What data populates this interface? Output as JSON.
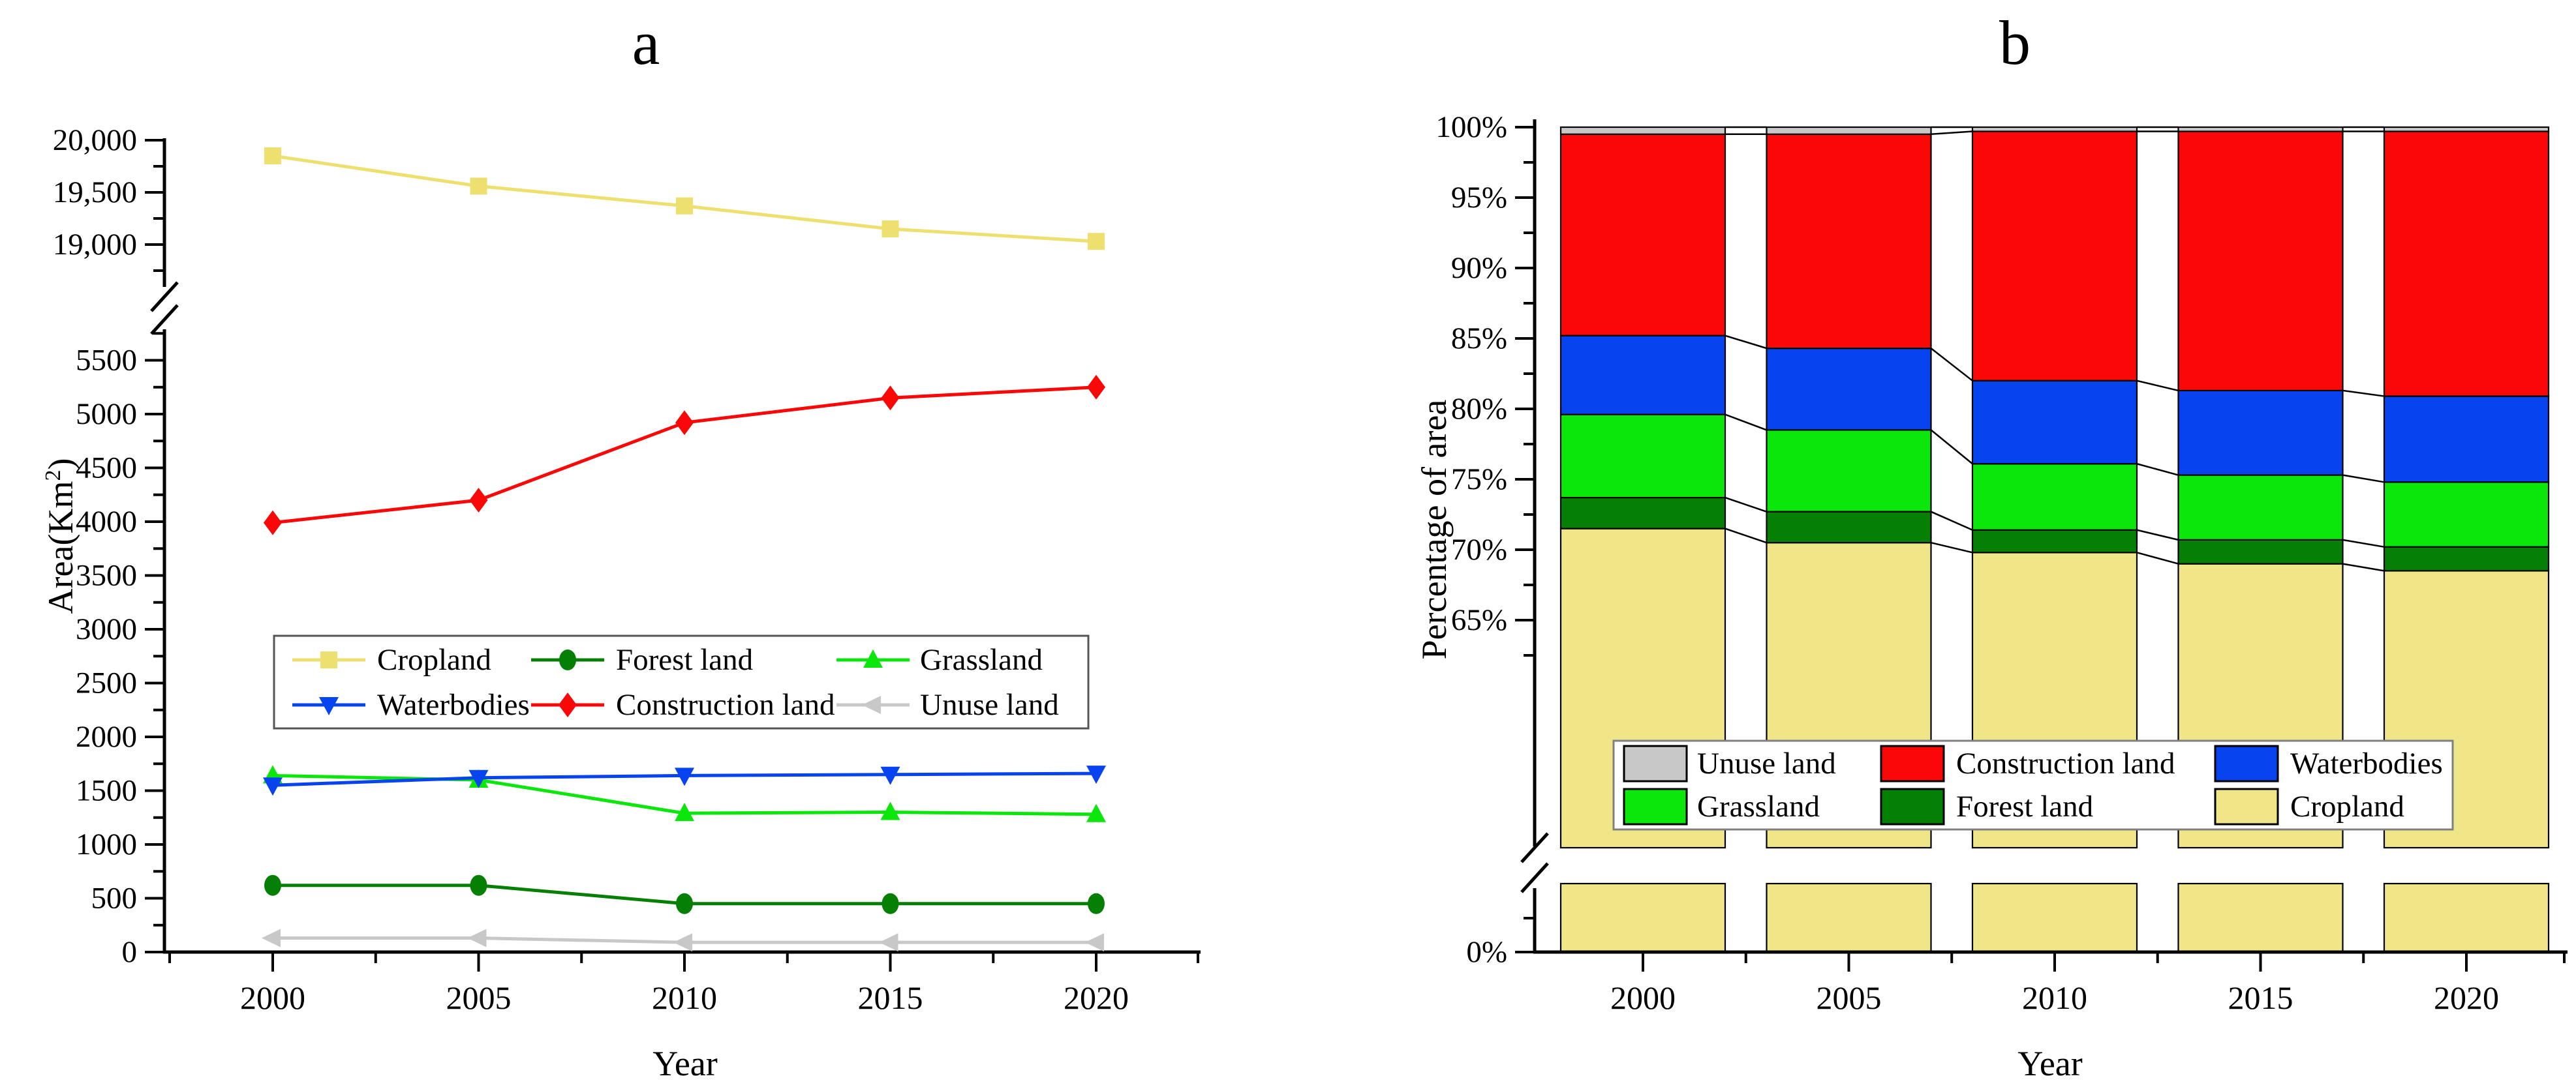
{
  "figure": {
    "background": "#ffffff",
    "panel_a": {
      "title": "a",
      "xlabel": "Year",
      "ylabel_prefix": "Area(Km",
      "ylabel_sup": "2",
      "ylabel_suffix": ")"
    },
    "panel_b": {
      "title": "b",
      "xlabel": "Year",
      "ylabel": "Percentage of area"
    }
  },
  "chart_data": [
    {
      "panel": "a",
      "type": "line",
      "title": "a",
      "xlabel": "Year",
      "ylabel": "Area(Km2)",
      "x": [
        2000,
        2005,
        2010,
        2015,
        2020
      ],
      "xtick_labels": [
        "2000",
        "2005",
        "2010",
        "2015",
        "2020"
      ],
      "axis_break": {
        "lower_range": [
          0,
          5750
        ],
        "upper_range": [
          18500,
          20100
        ]
      },
      "grid": false,
      "legend_position": "center-left-inside",
      "yticks_upper": {
        "values": [
          20000,
          19500,
          19000
        ],
        "labels": [
          "20,000",
          "19,500",
          "19,000"
        ]
      },
      "yticks_upper_minor": [
        19750,
        19250,
        18750
      ],
      "yticks_lower": {
        "values": [
          5500,
          5000,
          4500,
          4000,
          3500,
          3000,
          2500,
          2000,
          1500,
          1000,
          500,
          0
        ],
        "labels": [
          "5500",
          "5000",
          "4500",
          "4000",
          "3500",
          "3000",
          "2500",
          "2000",
          "1500",
          "1000",
          "500",
          "0"
        ]
      },
      "series": [
        {
          "name": "Cropland",
          "marker": "square",
          "color": "#EDE06E",
          "values": [
            19850,
            19560,
            19370,
            19150,
            19030
          ]
        },
        {
          "name": "Forest land",
          "marker": "circle",
          "color": "#058005",
          "values": [
            620,
            620,
            450,
            450,
            450
          ]
        },
        {
          "name": "Grassland",
          "marker": "triangle-up",
          "color": "#0BE60B",
          "values": [
            1640,
            1600,
            1290,
            1300,
            1280
          ]
        },
        {
          "name": "Waterbodies",
          "marker": "triangle-down",
          "color": "#0843F0",
          "values": [
            1550,
            1620,
            1640,
            1650,
            1660
          ]
        },
        {
          "name": "Construction land",
          "marker": "diamond",
          "color": "#FA0707",
          "values": [
            3990,
            4200,
            4920,
            5150,
            5250
          ]
        },
        {
          "name": "Unuse land",
          "marker": "triangle-left",
          "color": "#C8C8C8",
          "values": [
            130,
            130,
            90,
            90,
            90
          ]
        }
      ],
      "legend_rows": [
        [
          "Cropland",
          "Forest land",
          "Grassland"
        ],
        [
          "Waterbodies",
          "Construction land",
          "Unuse land"
        ]
      ]
    },
    {
      "panel": "b",
      "type": "stacked-bar-percent",
      "title": "b",
      "xlabel": "Year",
      "ylabel": "Percentage of area",
      "categories": [
        2000,
        2005,
        2010,
        2015,
        2020
      ],
      "xtick_labels": [
        "2000",
        "2005",
        "2010",
        "2015",
        "2020"
      ],
      "axis_break": {
        "upper_visible_range_pct": [
          49,
          100
        ],
        "lower_is_zero_baseline": true
      },
      "grid": false,
      "legend_position": "lower-center-inside",
      "yticks": {
        "values": [
          100,
          95,
          90,
          85,
          80,
          75,
          70,
          65
        ],
        "labels": [
          "100%",
          "95%",
          "90%",
          "85%",
          "80%",
          "75%",
          "70%",
          "65%"
        ]
      },
      "ytick_zero_label": "0%",
      "series_bottom_to_top": [
        {
          "name": "Cropland",
          "color": "#F0E688",
          "values": [
            71.5,
            70.5,
            69.8,
            69.0,
            68.5
          ]
        },
        {
          "name": "Forest land",
          "color": "#058005",
          "values": [
            2.2,
            2.2,
            1.6,
            1.7,
            1.7
          ]
        },
        {
          "name": "Grassland",
          "color": "#0BE60B",
          "values": [
            5.9,
            5.8,
            4.7,
            4.6,
            4.6
          ]
        },
        {
          "name": "Waterbodies",
          "color": "#0843F0",
          "values": [
            5.6,
            5.8,
            5.9,
            6.0,
            6.1
          ]
        },
        {
          "name": "Construction land",
          "color": "#FA0707",
          "values": [
            14.3,
            15.2,
            17.7,
            18.4,
            18.8
          ]
        },
        {
          "name": "Unuse land",
          "color": "#C8C8C8",
          "values": [
            0.5,
            0.5,
            0.3,
            0.3,
            0.3
          ]
        }
      ],
      "legend_rows": [
        [
          "Unuse land",
          "Construction land",
          "Waterbodies"
        ],
        [
          "Grassland",
          "Forest land",
          "Cropland"
        ]
      ]
    }
  ]
}
